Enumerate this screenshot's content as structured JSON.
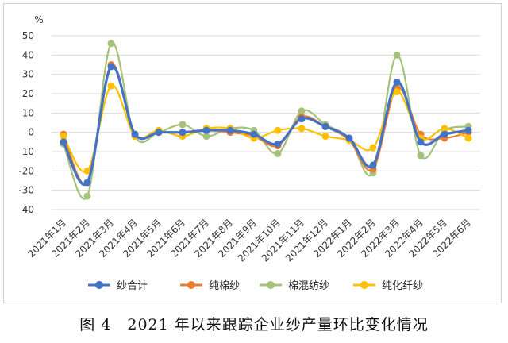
{
  "chart_data": {
    "type": "line",
    "ylabel": "%",
    "ylim": [
      -40,
      50
    ],
    "yticks": [
      50,
      40,
      30,
      20,
      10,
      0,
      -10,
      -20,
      -30,
      -40
    ],
    "categories": [
      "2021年1月",
      "2021年2月",
      "2021年3月",
      "2021年4月",
      "2021年5月",
      "2021年6月",
      "2021年7月",
      "2021年8月",
      "2021年9月",
      "2021年10月",
      "2021年11月",
      "2021年12月",
      "2022年1月",
      "2022年2月",
      "2022年3月",
      "2022年4月",
      "2022年5月",
      "2022年6月"
    ],
    "grid": true,
    "legend_position": "bottom",
    "series": [
      {
        "name": "纱合计",
        "color": "#4472C4",
        "values": [
          -5,
          -26,
          34,
          -1,
          0,
          0,
          1,
          1,
          -1,
          -6,
          7,
          3,
          -3,
          -17,
          26,
          -5,
          -1,
          1
        ]
      },
      {
        "name": "纯棉纱",
        "color": "#ED7D31",
        "values": [
          -1,
          -26,
          35,
          -1,
          0,
          0,
          1,
          0,
          -2,
          -7,
          8,
          3,
          -4,
          -19,
          23,
          -1,
          -3,
          0
        ]
      },
      {
        "name": "棉混纺纱",
        "color": "#A5C27A",
        "values": [
          -6,
          -33,
          46,
          -2,
          0,
          4,
          -2,
          2,
          1,
          -11,
          11,
          4,
          -3,
          -21,
          40,
          -12,
          1,
          3
        ]
      },
      {
        "name": "纯化纤纱",
        "color": "#FFC000",
        "values": [
          -2,
          -20,
          24,
          -2,
          1,
          -2,
          2,
          2,
          -3,
          1,
          2,
          -2,
          -4,
          -8,
          21,
          -3,
          2,
          -3
        ]
      }
    ]
  },
  "caption": "图 4　2021 年以来跟踪企业纱产量环比变化情况"
}
